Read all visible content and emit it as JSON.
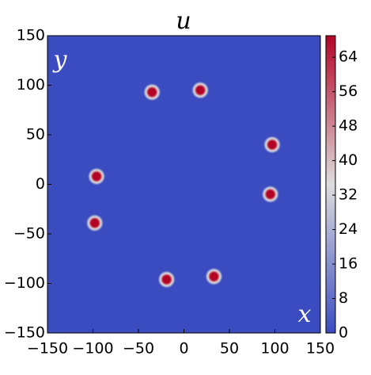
{
  "chart_data": {
    "type": "scatter",
    "title": "u",
    "x_label": "x",
    "y_label": "y",
    "x": [
      -35,
      18,
      97,
      95,
      33,
      -19,
      -98,
      -96
    ],
    "y": [
      93,
      95,
      40,
      -10,
      -93,
      -96,
      -39,
      8
    ],
    "values": [
      69,
      69,
      69,
      69,
      69,
      69,
      69,
      69
    ],
    "xlim": [
      -150,
      150
    ],
    "ylim": [
      -150,
      150
    ],
    "xticks": [
      {
        "value": -150,
        "label": "−150"
      },
      {
        "value": -100,
        "label": "−100"
      },
      {
        "value": -50,
        "label": "−50"
      },
      0,
      50,
      100,
      150
    ],
    "yticks": [
      {
        "value": -150,
        "label": "−150"
      },
      {
        "value": -100,
        "label": "−100"
      },
      {
        "value": -50,
        "label": "−50"
      },
      0,
      50,
      100,
      150
    ],
    "clim": [
      0,
      69
    ],
    "cticks": [
      0,
      8,
      16,
      24,
      32,
      40,
      48,
      56,
      64
    ],
    "colormap": [
      "#3b4cc0",
      "#dddddd",
      "#b40426"
    ]
  }
}
